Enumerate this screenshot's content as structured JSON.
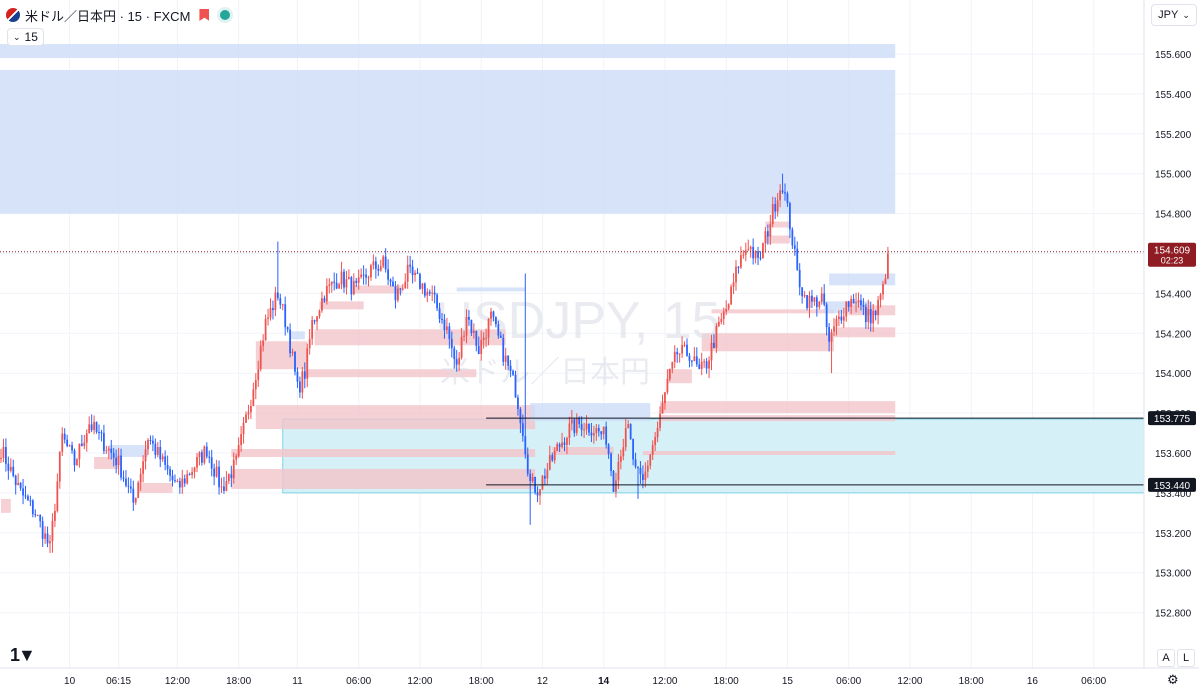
{
  "header": {
    "title": "米ドル／日本円 · 15 · FXCM",
    "interval": "15"
  },
  "watermark": {
    "symbol": "USDJPY, 15",
    "name": "米ドル／日本円"
  },
  "currency": "JPY",
  "buttons": {
    "auto": "A",
    "log": "L"
  },
  "icons": {
    "flag": "us-jp-flag-icon",
    "bookmark": "bookmark-icon",
    "status": "market-status-dot-icon",
    "interval_chevron": "chevron-down-icon",
    "currency_chevron": "chevron-down-icon",
    "logo": "tradingview-logo-icon",
    "settings": "gear-icon"
  },
  "colors": {
    "up": "#ef5350",
    "down": "#2962ff",
    "supply": "#cddcf7",
    "demand": "#f2c4c9",
    "range": "#d3eff6",
    "price_tag": "#8e1c22"
  },
  "chart_data": {
    "type": "candlestick",
    "ylim": [
      152.7,
      155.75
    ],
    "yticks": [
      "152.800",
      "153.000",
      "153.200",
      "153.400",
      "153.600",
      "153.800",
      "154.000",
      "154.200",
      "154.400",
      "154.600",
      "154.800",
      "155.000",
      "155.200",
      "155.400",
      "155.600"
    ],
    "xticks": [
      {
        "label": "10",
        "i": 28
      },
      {
        "label": "06:15",
        "i": 48
      },
      {
        "label": "12:00",
        "i": 72
      },
      {
        "label": "18:00",
        "i": 97
      },
      {
        "label": "11",
        "i": 121
      },
      {
        "label": "06:00",
        "i": 146
      },
      {
        "label": "12:00",
        "i": 171
      },
      {
        "label": "18:00",
        "i": 196
      },
      {
        "label": "12",
        "i": 221
      },
      {
        "label": "14",
        "i": 246,
        "bold": true
      },
      {
        "label": "12:00",
        "i": 271
      },
      {
        "label": "18:00",
        "i": 296
      },
      {
        "label": "15",
        "i": 321
      },
      {
        "label": "06:00",
        "i": 346
      },
      {
        "label": "12:00",
        "i": 371
      },
      {
        "label": "18:00",
        "i": 396
      },
      {
        "label": "16",
        "i": 421
      },
      {
        "label": "06:00",
        "i": 446
      }
    ],
    "last_price": "154.609",
    "countdown": "02:23",
    "levels": [
      {
        "price": 153.775,
        "label": "153.775"
      },
      {
        "price": 153.44,
        "label": "153.440"
      }
    ],
    "anchors": [
      {
        "i": 0,
        "p": 153.62
      },
      {
        "i": 8,
        "p": 153.4
      },
      {
        "i": 14,
        "p": 153.3
      },
      {
        "i": 20,
        "p": 153.12
      },
      {
        "i": 25,
        "p": 153.68
      },
      {
        "i": 30,
        "p": 153.55
      },
      {
        "i": 36,
        "p": 153.75
      },
      {
        "i": 42,
        "p": 153.65
      },
      {
        "i": 48,
        "p": 153.55
      },
      {
        "i": 54,
        "p": 153.35
      },
      {
        "i": 60,
        "p": 153.68
      },
      {
        "i": 66,
        "p": 153.55
      },
      {
        "i": 72,
        "p": 153.42
      },
      {
        "i": 78,
        "p": 153.52
      },
      {
        "i": 84,
        "p": 153.62
      },
      {
        "i": 90,
        "p": 153.42
      },
      {
        "i": 96,
        "p": 153.55
      },
      {
        "i": 102,
        "p": 153.88
      },
      {
        "i": 108,
        "p": 154.25
      },
      {
        "i": 113,
        "p": 154.4
      },
      {
        "i": 117,
        "p": 154.22
      },
      {
        "i": 121,
        "p": 153.92
      },
      {
        "i": 124,
        "p": 154.0
      },
      {
        "i": 127,
        "p": 154.25
      },
      {
        "i": 132,
        "p": 154.4
      },
      {
        "i": 138,
        "p": 154.48
      },
      {
        "i": 145,
        "p": 154.42
      },
      {
        "i": 151,
        "p": 154.52
      },
      {
        "i": 156,
        "p": 154.55
      },
      {
        "i": 161,
        "p": 154.38
      },
      {
        "i": 166,
        "p": 154.5
      },
      {
        "i": 171,
        "p": 154.45
      },
      {
        "i": 176,
        "p": 154.38
      },
      {
        "i": 182,
        "p": 154.22
      },
      {
        "i": 186,
        "p": 154.02
      },
      {
        "i": 190,
        "p": 154.3
      },
      {
        "i": 195,
        "p": 154.12
      },
      {
        "i": 200,
        "p": 154.28
      },
      {
        "i": 205,
        "p": 154.1
      },
      {
        "i": 210,
        "p": 153.92
      },
      {
        "i": 213,
        "p": 153.72
      },
      {
        "i": 216,
        "p": 153.45
      },
      {
        "i": 219,
        "p": 153.42
      },
      {
        "i": 223,
        "p": 153.52
      },
      {
        "i": 227,
        "p": 153.62
      },
      {
        "i": 232,
        "p": 153.72
      },
      {
        "i": 237,
        "p": 153.75
      },
      {
        "i": 242,
        "p": 153.72
      },
      {
        "i": 247,
        "p": 153.68
      },
      {
        "i": 250,
        "p": 153.45
      },
      {
        "i": 253,
        "p": 153.62
      },
      {
        "i": 256,
        "p": 153.72
      },
      {
        "i": 259,
        "p": 153.5
      },
      {
        "i": 262,
        "p": 153.45
      },
      {
        "i": 265,
        "p": 153.6
      },
      {
        "i": 268,
        "p": 153.72
      },
      {
        "i": 272,
        "p": 153.95
      },
      {
        "i": 276,
        "p": 154.1
      },
      {
        "i": 281,
        "p": 154.1
      },
      {
        "i": 285,
        "p": 154.0
      },
      {
        "i": 288,
        "p": 154.05
      },
      {
        "i": 292,
        "p": 154.2
      },
      {
        "i": 297,
        "p": 154.35
      },
      {
        "i": 301,
        "p": 154.55
      },
      {
        "i": 305,
        "p": 154.65
      },
      {
        "i": 309,
        "p": 154.55
      },
      {
        "i": 313,
        "p": 154.72
      },
      {
        "i": 317,
        "p": 154.9
      },
      {
        "i": 319,
        "p": 154.95
      },
      {
        "i": 322,
        "p": 154.75
      },
      {
        "i": 325,
        "p": 154.5
      },
      {
        "i": 328,
        "p": 154.38
      },
      {
        "i": 331,
        "p": 154.35
      },
      {
        "i": 335,
        "p": 154.38
      },
      {
        "i": 338,
        "p": 154.15
      },
      {
        "i": 341,
        "p": 154.25
      },
      {
        "i": 345,
        "p": 154.35
      },
      {
        "i": 349,
        "p": 154.38
      },
      {
        "i": 353,
        "p": 154.28
      },
      {
        "i": 357,
        "p": 154.3
      },
      {
        "i": 360,
        "p": 154.42
      },
      {
        "i": 362,
        "p": 154.6
      }
    ],
    "zones": [
      {
        "kind": "supply",
        "i1": -1,
        "i2": 365,
        "p1": 155.58,
        "p2": 155.65
      },
      {
        "kind": "supply",
        "i1": -1,
        "i2": 365,
        "p1": 154.8,
        "p2": 155.52
      },
      {
        "kind": "range",
        "i1": 115,
        "i2": 470,
        "p1": 153.4,
        "p2": 153.77
      },
      {
        "kind": "demand",
        "i1": 0,
        "i2": 4,
        "p1": 153.3,
        "p2": 153.37
      },
      {
        "kind": "demand",
        "i1": 38,
        "i2": 48,
        "p1": 153.52,
        "p2": 153.58
      },
      {
        "kind": "supply",
        "i1": 44,
        "i2": 60,
        "p1": 153.58,
        "p2": 153.64
      },
      {
        "kind": "demand",
        "i1": 56,
        "i2": 70,
        "p1": 153.4,
        "p2": 153.45
      },
      {
        "kind": "demand",
        "i1": 94,
        "i2": 218,
        "p1": 153.42,
        "p2": 153.52
      },
      {
        "kind": "demand",
        "i1": 94,
        "i2": 218,
        "p1": 153.58,
        "p2": 153.62
      },
      {
        "kind": "demand",
        "i1": 104,
        "i2": 218,
        "p1": 153.72,
        "p2": 153.84
      },
      {
        "kind": "demand",
        "i1": 104,
        "i2": 125,
        "p1": 154.02,
        "p2": 154.16
      },
      {
        "kind": "supply",
        "i1": 118,
        "i2": 124,
        "p1": 154.17,
        "p2": 154.21
      },
      {
        "kind": "demand",
        "i1": 124,
        "i2": 194,
        "p1": 153.98,
        "p2": 154.02
      },
      {
        "kind": "demand",
        "i1": 128,
        "i2": 206,
        "p1": 154.14,
        "p2": 154.22
      },
      {
        "kind": "demand",
        "i1": 130,
        "i2": 148,
        "p1": 154.32,
        "p2": 154.36
      },
      {
        "kind": "demand",
        "i1": 144,
        "i2": 164,
        "p1": 154.4,
        "p2": 154.44
      },
      {
        "kind": "supply",
        "i1": 186,
        "i2": 214,
        "p1": 154.41,
        "p2": 154.43
      },
      {
        "kind": "supply",
        "i1": 216,
        "i2": 265,
        "p1": 153.76,
        "p2": 153.85
      },
      {
        "kind": "demand",
        "i1": 225,
        "i2": 250,
        "p1": 153.59,
        "p2": 153.63
      },
      {
        "kind": "demand",
        "i1": 262,
        "i2": 365,
        "p1": 153.59,
        "p2": 153.61
      },
      {
        "kind": "demand",
        "i1": 269,
        "i2": 365,
        "p1": 153.8,
        "p2": 153.86
      },
      {
        "kind": "demand",
        "i1": 269,
        "i2": 365,
        "p1": 153.76,
        "p2": 153.79
      },
      {
        "kind": "demand",
        "i1": 272,
        "i2": 282,
        "p1": 153.95,
        "p2": 154.02
      },
      {
        "kind": "demand",
        "i1": 286,
        "i2": 340,
        "p1": 154.11,
        "p2": 154.2
      },
      {
        "kind": "demand",
        "i1": 290,
        "i2": 340,
        "p1": 154.3,
        "p2": 154.32
      },
      {
        "kind": "supply",
        "i1": 338,
        "i2": 365,
        "p1": 154.44,
        "p2": 154.5
      },
      {
        "kind": "supply",
        "i1": 336,
        "i2": 355,
        "p1": 154.3,
        "p2": 154.36
      },
      {
        "kind": "demand",
        "i1": 340,
        "i2": 365,
        "p1": 154.18,
        "p2": 154.23
      },
      {
        "kind": "demand",
        "i1": 346,
        "i2": 365,
        "p1": 154.29,
        "p2": 154.34
      },
      {
        "kind": "demand",
        "i1": 312,
        "i2": 322,
        "p1": 154.65,
        "p2": 154.69
      },
      {
        "kind": "demand",
        "i1": 312,
        "i2": 322,
        "p1": 154.73,
        "p2": 154.76
      }
    ]
  }
}
